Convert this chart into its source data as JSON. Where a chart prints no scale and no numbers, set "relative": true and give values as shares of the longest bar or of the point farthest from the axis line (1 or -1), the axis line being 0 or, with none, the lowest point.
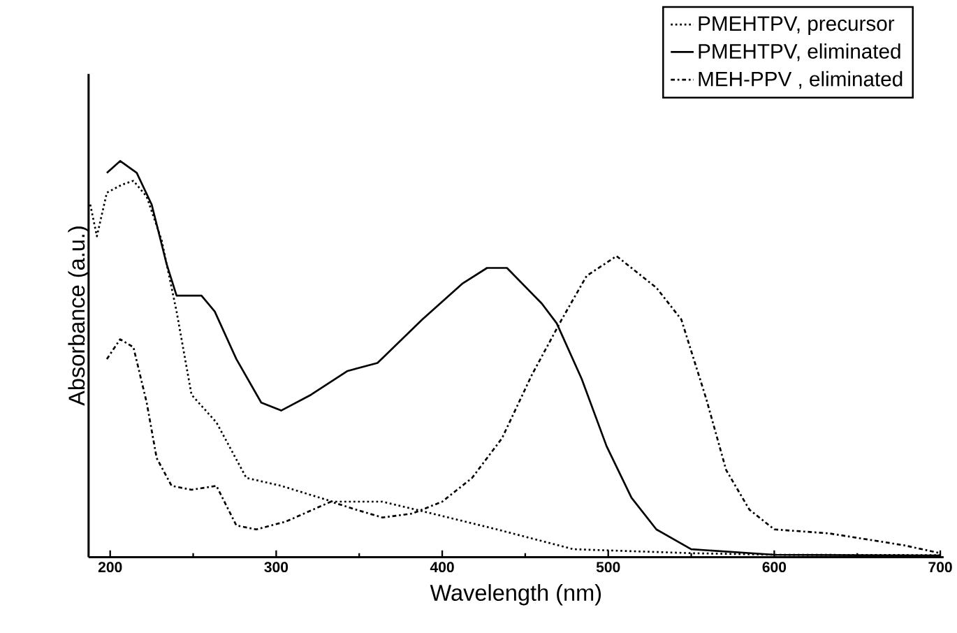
{
  "chart_data": {
    "type": "line",
    "relative": true,
    "xlabel": "Wavelength (nm)",
    "ylabel": "Absorbance (a.u.)",
    "xlim": [
      187,
      702
    ],
    "xticks": [
      200,
      300,
      400,
      500,
      600,
      700
    ],
    "legend": "top right",
    "series": [
      {
        "name": "PMEHTPV, precursor",
        "color": "#000000",
        "line_style": "dotted",
        "x": [
          188,
          192,
          198,
          207,
          214,
          222,
          231,
          240,
          249,
          264,
          282,
          303,
          334,
          364,
          394,
          433,
          479,
          500,
          550,
          600,
          700
        ],
        "values": [
          0.89,
          0.81,
          0.92,
          0.94,
          0.95,
          0.91,
          0.8,
          0.62,
          0.41,
          0.34,
          0.2,
          0.18,
          0.14,
          0.14,
          0.11,
          0.07,
          0.02,
          0.017,
          0.01,
          0.006,
          0.005
        ]
      },
      {
        "name": "PMEHTPV, eliminated",
        "color": "#000000",
        "line_style": "solid",
        "x": [
          198,
          206,
          216,
          225,
          234,
          240,
          255,
          263,
          276,
          291,
          303,
          321,
          343,
          361,
          388,
          412,
          427,
          439,
          460,
          469,
          484,
          499,
          514,
          529,
          550,
          600,
          700
        ],
        "values": [
          0.97,
          1.0,
          0.97,
          0.89,
          0.74,
          0.66,
          0.66,
          0.62,
          0.5,
          0.39,
          0.37,
          0.41,
          0.47,
          0.49,
          0.6,
          0.69,
          0.73,
          0.73,
          0.64,
          0.59,
          0.45,
          0.28,
          0.15,
          0.07,
          0.02,
          0.006,
          0.004
        ]
      },
      {
        "name": "MEH-PPV , eliminated",
        "color": "#000000",
        "line_style": "dashdot",
        "x": [
          198,
          206,
          214,
          222,
          228,
          237,
          249,
          264,
          276,
          288,
          306,
          333,
          348,
          364,
          382,
          400,
          418,
          436,
          454,
          472,
          487,
          505,
          529,
          544,
          559,
          571,
          585,
          600,
          633,
          678,
          700
        ],
        "values": [
          0.5,
          0.55,
          0.53,
          0.39,
          0.25,
          0.18,
          0.17,
          0.18,
          0.08,
          0.07,
          0.09,
          0.14,
          0.12,
          0.1,
          0.11,
          0.14,
          0.2,
          0.3,
          0.46,
          0.6,
          0.71,
          0.76,
          0.68,
          0.6,
          0.4,
          0.22,
          0.12,
          0.07,
          0.06,
          0.03,
          0.01
        ]
      }
    ]
  }
}
